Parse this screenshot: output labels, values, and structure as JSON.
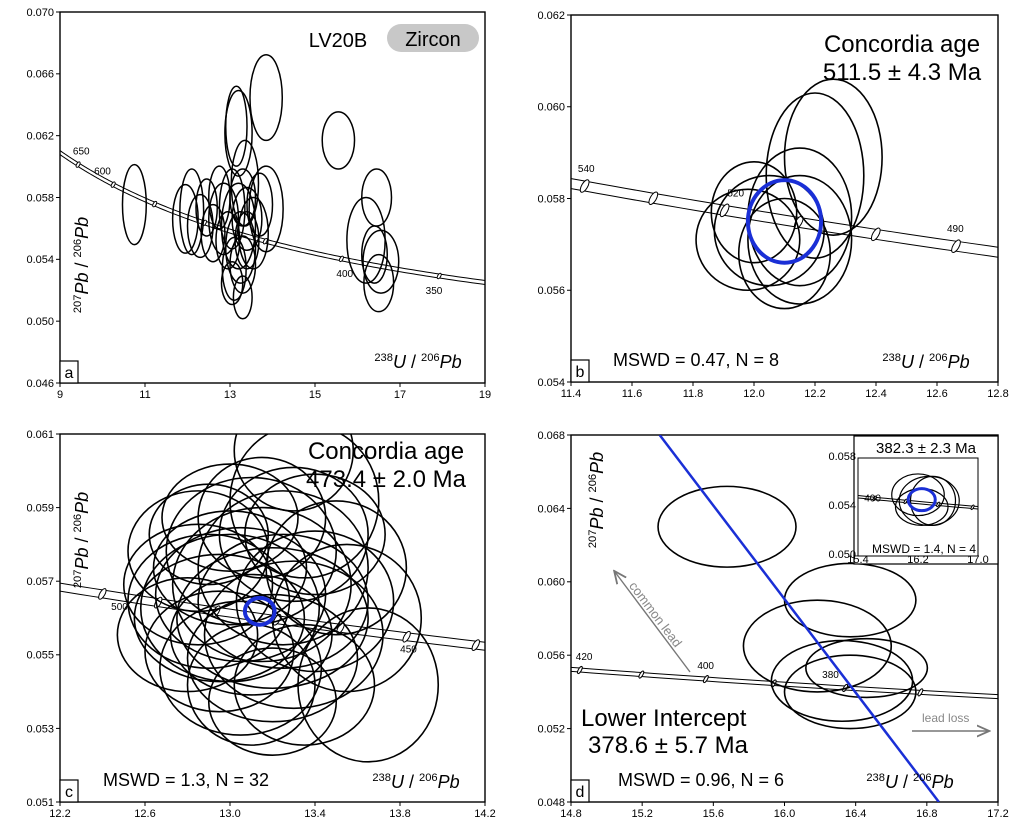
{
  "figure": {
    "panels": [
      {
        "panel_letter": "a",
        "xlim": [
          9,
          19
        ],
        "ylim": [
          0.046,
          0.072
        ],
        "xticks": [
          "9",
          "11",
          "13",
          "15",
          "17",
          "19"
        ],
        "yticks": [
          "0.046",
          "0.050",
          "0.054",
          "0.058",
          "0.062",
          "0.066",
          "0.070"
        ],
        "sample_label": "LV20B",
        "badge_label": "Zircon",
        "concordia_age_labels": [
          {
            "age": "650",
            "x": 9.5
          },
          {
            "age": "600",
            "x": 10.0
          },
          {
            "age": "400",
            "x": 15.7
          },
          {
            "age": "350",
            "x": 17.8
          }
        ]
      },
      {
        "panel_letter": "b",
        "xlim": [
          11.4,
          12.8
        ],
        "ylim": [
          0.054,
          0.062
        ],
        "xticks": [
          "11.4",
          "11.6",
          "11.8",
          "12.0",
          "12.2",
          "12.4",
          "12.6",
          "12.8"
        ],
        "yticks": [
          "0.054",
          "0.056",
          "0.058",
          "0.060",
          "0.062"
        ],
        "title": "Concordia age",
        "age_text": "511.5 ± 4.3 Ma",
        "stats": "MSWD = 0.47, N = 8",
        "concordia_age_labels": [
          {
            "age": "540",
            "x": 11.45
          },
          {
            "age": "520",
            "x": 11.94
          },
          {
            "age": "490",
            "x": 12.66
          }
        ]
      },
      {
        "panel_letter": "c",
        "xlim": [
          12.2,
          14.2
        ],
        "ylim": [
          0.051,
          0.062
        ],
        "xticks": [
          "12.2",
          "12.6",
          "13.0",
          "13.4",
          "13.8",
          "14.2"
        ],
        "yticks": [
          "0.051",
          "0.053",
          "0.055",
          "0.057",
          "0.059",
          "0.061"
        ],
        "title": "Concordia age",
        "age_text": "473.4 ± 2.0 Ma",
        "stats": "MSWD = 1.3, N = 32",
        "concordia_age_labels": [
          {
            "age": "500",
            "x": 12.48
          },
          {
            "age": "450",
            "x": 13.84
          }
        ]
      },
      {
        "panel_letter": "d",
        "xlim": [
          14.8,
          17.4
        ],
        "ylim": [
          0.048,
          0.068
        ],
        "xticks": [
          "14.8",
          "15.2",
          "15.6",
          "16.0",
          "16.4",
          "16.8",
          "17.2"
        ],
        "yticks": [
          "0.048",
          "0.052",
          "0.056",
          "0.060",
          "0.064",
          "0.068"
        ],
        "intercept_title": "Lower Intercept",
        "age_text": "378.6 ± 5.7 Ma",
        "stats": "MSWD = 0.96, N = 6",
        "common_lead_label": "common lead",
        "lead_loss_label": "lead loss",
        "concordia_age_labels": [
          {
            "age": "420",
            "x": 14.88
          },
          {
            "age": "400",
            "x": 15.62
          },
          {
            "age": "380",
            "x": 16.38
          }
        ],
        "inset": {
          "xlim": [
            15.4,
            17.0
          ],
          "ylim": [
            0.05,
            0.058
          ],
          "xticks": [
            "15.4",
            "16.2",
            "17.0"
          ],
          "yticks": [
            "0.050",
            "0.054",
            "0.058"
          ],
          "age_text": "382.3 ± 2.3 Ma",
          "stats": "MSWD = 1.4, N = 4",
          "concordia_age_label": "400"
        }
      }
    ],
    "x_axis_label": {
      "sup1": "238",
      "el1": "U",
      "sep": " / ",
      "sup2": "206",
      "el2": "Pb"
    },
    "y_axis_label": {
      "sup1": "207",
      "el1": "Pb",
      "sep": " / ",
      "sup2": "206",
      "el2": "Pb"
    }
  },
  "chart_data": [
    {
      "type": "scatter",
      "panel": "a",
      "title": "",
      "xlabel": "238U / 206Pb",
      "ylabel": "207Pb / 206Pb",
      "xlim": [
        9,
        19
      ],
      "ylim": [
        0.046,
        0.072
      ],
      "series": [
        {
          "name": "",
          "description": "2-sigma error ellipses (center x, center y, half-width x, half-height y)",
          "ellipses": [
            [
              10.75,
              0.0585,
              0.28,
              0.0028
            ],
            [
              11.95,
              0.0575,
              0.3,
              0.0024
            ],
            [
              12.1,
              0.058,
              0.28,
              0.003
            ],
            [
              12.3,
              0.057,
              0.3,
              0.0022
            ],
            [
              12.45,
              0.0583,
              0.25,
              0.002
            ],
            [
              12.6,
              0.0565,
              0.28,
              0.002
            ],
            [
              12.75,
              0.059,
              0.25,
              0.0022
            ],
            [
              12.85,
              0.0575,
              0.35,
              0.0025
            ],
            [
              12.95,
              0.056,
              0.28,
              0.002
            ],
            [
              13.05,
              0.0582,
              0.3,
              0.0028
            ],
            [
              13.1,
              0.054,
              0.28,
              0.0022
            ],
            [
              13.2,
              0.057,
              0.4,
              0.003
            ],
            [
              13.25,
              0.0555,
              0.35,
              0.0025
            ],
            [
              13.3,
              0.059,
              0.3,
              0.002
            ],
            [
              13.35,
              0.06,
              0.32,
              0.003
            ],
            [
              13.4,
              0.0575,
              0.35,
              0.0022
            ],
            [
              13.05,
              0.053,
              0.25,
              0.0015
            ],
            [
              13.15,
              0.064,
              0.25,
              0.0028
            ],
            [
              13.2,
              0.0635,
              0.32,
              0.003
            ],
            [
              13.3,
              0.0543,
              0.3,
              0.002
            ],
            [
              13.4,
              0.056,
              0.28,
              0.002
            ],
            [
              13.55,
              0.0565,
              0.35,
              0.0025
            ],
            [
              13.7,
              0.0585,
              0.3,
              0.0022
            ],
            [
              13.85,
              0.0582,
              0.4,
              0.003
            ],
            [
              13.85,
              0.066,
              0.38,
              0.003
            ],
            [
              13.3,
              0.052,
              0.22,
              0.0015
            ],
            [
              15.55,
              0.063,
              0.38,
              0.002
            ],
            [
              16.2,
              0.056,
              0.45,
              0.003
            ],
            [
              16.45,
              0.059,
              0.35,
              0.002
            ],
            [
              16.55,
              0.0545,
              0.42,
              0.0022
            ],
            [
              16.4,
              0.055,
              0.3,
              0.002
            ],
            [
              16.5,
              0.053,
              0.35,
              0.002
            ]
          ]
        }
      ]
    },
    {
      "type": "scatter",
      "panel": "b",
      "title": "Concordia age",
      "annotation": "511.5 ± 4.3 Ma",
      "xlabel": "238U / 206Pb",
      "ylabel": "",
      "xlim": [
        11.4,
        12.8
      ],
      "ylim": [
        0.054,
        0.062
      ],
      "series": [
        {
          "name": "",
          "ellipses": [
            [
              11.98,
              0.0571,
              0.17,
              0.0011
            ],
            [
              12.0,
              0.0577,
              0.14,
              0.0011
            ],
            [
              12.05,
              0.0573,
              0.18,
              0.0012
            ],
            [
              12.1,
              0.0568,
              0.15,
              0.0012
            ],
            [
              12.15,
              0.0571,
              0.17,
              0.0014
            ],
            [
              12.15,
              0.0576,
              0.17,
              0.0015
            ],
            [
              12.2,
              0.0585,
              0.16,
              0.0018
            ],
            [
              12.26,
              0.0589,
              0.16,
              0.0017
            ]
          ]
        },
        {
          "name": "",
          "role": "concordia age ellipse",
          "color": "#1a2fd6",
          "ellipses": [
            [
              12.1,
              0.0575,
              0.12,
              0.0009
            ]
          ]
        }
      ]
    },
    {
      "type": "scatter",
      "panel": "c",
      "title": "Concordia age",
      "annotation": "473.4 ± 2.0 Ma",
      "xlabel": "238U / 206Pb",
      "ylabel": "207Pb / 206Pb",
      "xlim": [
        12.2,
        14.2
      ],
      "ylim": [
        0.051,
        0.062
      ],
      "series": [
        {
          "name": "",
          "ellipses": [
            [
              12.85,
              0.0575,
              0.35,
              0.0018
            ],
            [
              12.9,
              0.057,
              0.38,
              0.002
            ],
            [
              12.95,
              0.0565,
              0.4,
              0.0019
            ],
            [
              13.0,
              0.0568,
              0.42,
              0.0022
            ],
            [
              13.05,
              0.0572,
              0.4,
              0.002
            ],
            [
              13.1,
              0.056,
              0.38,
              0.0018
            ],
            [
              13.15,
              0.0575,
              0.42,
              0.0023
            ],
            [
              13.2,
              0.0565,
              0.45,
              0.0021
            ],
            [
              13.0,
              0.058,
              0.36,
              0.0017
            ],
            [
              13.1,
              0.0585,
              0.4,
              0.0022
            ],
            [
              13.25,
              0.057,
              0.4,
              0.002
            ],
            [
              13.3,
              0.056,
              0.42,
              0.0022
            ],
            [
              12.95,
              0.0555,
              0.35,
              0.0018
            ],
            [
              13.05,
              0.055,
              0.38,
              0.002
            ],
            [
              13.2,
              0.0553,
              0.4,
              0.0019
            ],
            [
              13.3,
              0.059,
              0.35,
              0.002
            ],
            [
              13.4,
              0.057,
              0.37,
              0.0021
            ],
            [
              13.4,
              0.059,
              0.33,
              0.0018
            ],
            [
              12.8,
              0.056,
              0.33,
              0.0017
            ],
            [
              12.85,
              0.0585,
              0.33,
              0.0018
            ],
            [
              13.15,
              0.0595,
              0.3,
              0.0018
            ],
            [
              13.5,
              0.058,
              0.33,
              0.002
            ],
            [
              13.55,
              0.0565,
              0.35,
              0.0022
            ],
            [
              13.1,
              0.0545,
              0.3,
              0.0018
            ],
            [
              13.0,
              0.0595,
              0.32,
              0.0016
            ],
            [
              13.25,
              0.058,
              0.4,
              0.0023
            ],
            [
              12.9,
              0.059,
              0.28,
              0.0015
            ],
            [
              13.2,
              0.054,
              0.3,
              0.0016
            ],
            [
              13.35,
              0.0545,
              0.33,
              0.0018
            ],
            [
              13.35,
              0.06,
              0.35,
              0.0023
            ],
            [
              13.65,
              0.0545,
              0.33,
              0.0023
            ],
            [
              13.3,
              0.0615,
              0.28,
              0.0018
            ]
          ]
        },
        {
          "name": "",
          "role": "concordia age ellipse",
          "color": "#1a2fd6",
          "ellipses": [
            [
              13.14,
              0.0567,
              0.07,
              0.0004
            ]
          ]
        }
      ]
    },
    {
      "type": "scatter",
      "panel": "d",
      "title": "Lower Intercept",
      "annotation": "378.6 ± 5.7 Ma",
      "xlabel": "238U / 206Pb",
      "ylabel": "207Pb / 206Pb",
      "xlim": [
        14.8,
        17.4
      ],
      "ylim": [
        0.048,
        0.068
      ],
      "series": [
        {
          "name": "",
          "ellipses": [
            [
              15.75,
              0.063,
              0.42,
              0.0022
            ],
            [
              16.5,
              0.059,
              0.4,
              0.002
            ],
            [
              16.3,
              0.0565,
              0.45,
              0.0025
            ],
            [
              16.5,
              0.054,
              0.4,
              0.002
            ],
            [
              16.45,
              0.0546,
              0.43,
              0.0022
            ],
            [
              16.6,
              0.0553,
              0.37,
              0.0016
            ]
          ]
        },
        {
          "name": "",
          "role": "discordia regression line",
          "color": "#1a2fd6",
          "line": [
            [
              15.34,
              0.068
            ],
            [
              17.04,
              0.048
            ]
          ]
        }
      ]
    },
    {
      "type": "scatter",
      "panel": "d-inset",
      "title": "",
      "annotation": "382.3 ± 2.3 Ma",
      "xlim": [
        15.4,
        17.0
      ],
      "ylim": [
        0.05,
        0.058
      ],
      "series": [
        {
          "name": "",
          "ellipses": [
            [
              16.2,
              0.055,
              0.35,
              0.0017
            ],
            [
              16.35,
              0.0545,
              0.4,
              0.002
            ],
            [
              16.25,
              0.054,
              0.35,
              0.0015
            ],
            [
              16.4,
              0.0545,
              0.3,
              0.002
            ]
          ]
        },
        {
          "name": "",
          "role": "concordia age ellipse",
          "color": "#1a2fd6",
          "ellipses": [
            [
              16.25,
              0.0546,
              0.18,
              0.0009
            ]
          ]
        }
      ]
    }
  ]
}
